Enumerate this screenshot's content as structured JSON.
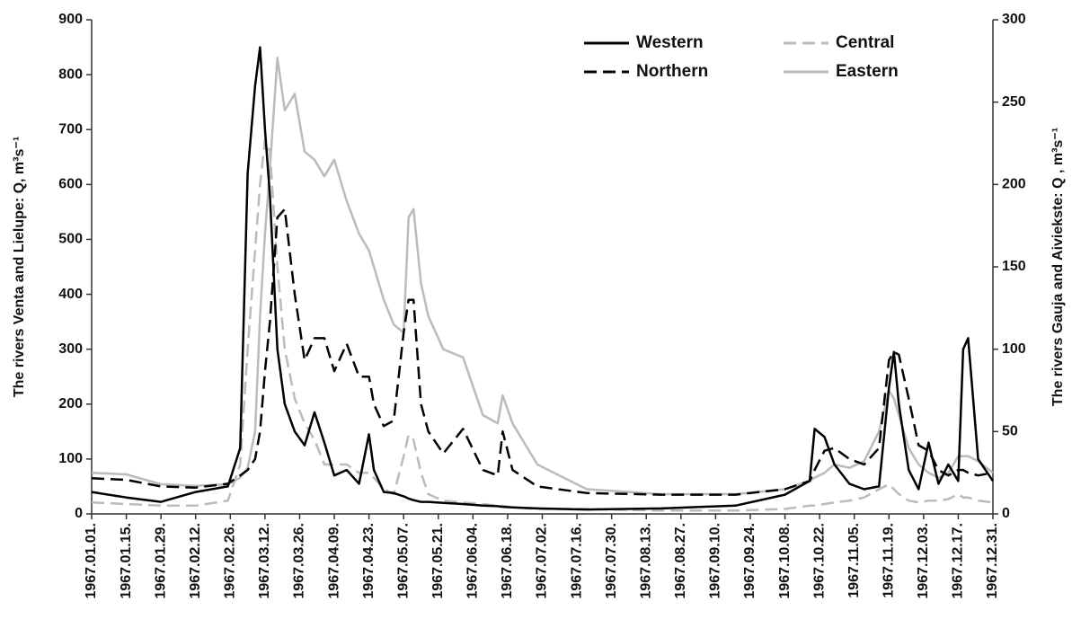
{
  "chart_data": {
    "type": "line",
    "y_label": "The rivers Venta and Lielupe: Q, m³s⁻¹",
    "y2_label": "The rivers Gauja and Aiviekste: Q , m³s⁻¹",
    "x": [
      "1967.01.01.",
      "1967.01.15.",
      "1967.01.29.",
      "1967.02.12.",
      "1967.02.25.",
      "1967.03.02.",
      "1967.03.05.",
      "1967.03.08.",
      "1967.03.10.",
      "1967.03.12.",
      "1967.03.14.",
      "1967.03.17.",
      "1967.03.20.",
      "1967.03.24.",
      "1967.03.28.",
      "1967.04.01.",
      "1967.04.05.",
      "1967.04.09.",
      "1967.04.14.",
      "1967.04.19.",
      "1967.04.23.",
      "1967.04.25.",
      "1967.04.29.",
      "1967.05.03.",
      "1967.05.07.",
      "1967.05.09.",
      "1967.05.11.",
      "1967.05.14.",
      "1967.05.17.",
      "1967.05.23.",
      "1967.05.31.",
      "1967.06.08.",
      "1967.06.14.",
      "1967.06.16.",
      "1967.06.20.",
      "1967.06.30.",
      "1967.07.20.",
      "1967.08.19.",
      "1967.09.18.",
      "1967.10.08.",
      "1967.10.18.",
      "1967.10.20.",
      "1967.10.24.",
      "1967.10.28.",
      "1967.11.03.",
      "1967.11.09.",
      "1967.11.15.",
      "1967.11.19.",
      "1967.11.21.",
      "1967.11.23.",
      "1967.11.27.",
      "1967.12.01.",
      "1967.12.05.",
      "1967.12.09.",
      "1967.12.13.",
      "1967.12.17.",
      "1967.12.19.",
      "1967.12.21.",
      "1967.12.25.",
      "1967.12.31."
    ],
    "series": [
      {
        "name": "Western",
        "color": "#000000",
        "dash": false,
        "axis": "y",
        "values": [
          40,
          30,
          22,
          40,
          50,
          120,
          620,
          780,
          850,
          700,
          580,
          300,
          200,
          150,
          125,
          185,
          130,
          70,
          80,
          55,
          145,
          80,
          40,
          38,
          32,
          28,
          25,
          22,
          22,
          20,
          18,
          15,
          14,
          13,
          12,
          10,
          8,
          10,
          15,
          35,
          60,
          155,
          140,
          90,
          55,
          45,
          50,
          230,
          295,
          200,
          80,
          45,
          130,
          55,
          90,
          60,
          300,
          320,
          100,
          60
        ]
      },
      {
        "name": "Northern",
        "color": "#000000",
        "dash": true,
        "axis": "y",
        "values": [
          65,
          62,
          50,
          48,
          55,
          70,
          80,
          100,
          150,
          260,
          350,
          540,
          555,
          400,
          280,
          320,
          320,
          260,
          310,
          250,
          250,
          200,
          160,
          170,
          330,
          390,
          390,
          200,
          150,
          110,
          155,
          80,
          70,
          150,
          80,
          50,
          38,
          35,
          35,
          45,
          60,
          80,
          115,
          120,
          100,
          90,
          120,
          280,
          295,
          290,
          210,
          125,
          115,
          80,
          70,
          80,
          80,
          75,
          70,
          75
        ]
      },
      {
        "name": "Central",
        "color": "#bbbbbb",
        "dash": true,
        "axis": "y2",
        "values": [
          7,
          6,
          5,
          5,
          8,
          30,
          100,
          160,
          200,
          227,
          220,
          150,
          100,
          70,
          55,
          45,
          30,
          30,
          30,
          25,
          25,
          22,
          15,
          12,
          35,
          48,
          45,
          25,
          12,
          8,
          7,
          6,
          5,
          5,
          4,
          3,
          3,
          2,
          2,
          3,
          5,
          5,
          6,
          7,
          8,
          10,
          15,
          18,
          15,
          12,
          8,
          7,
          8,
          8,
          9,
          12,
          10,
          10,
          8,
          7
        ]
      },
      {
        "name": "Eastern",
        "color": "#bbbbbb",
        "dash": false,
        "axis": "y2",
        "values": [
          25,
          24,
          18,
          17,
          18,
          22,
          28,
          50,
          120,
          170,
          210,
          277,
          245,
          255,
          220,
          215,
          205,
          215,
          190,
          170,
          160,
          150,
          130,
          115,
          110,
          180,
          185,
          140,
          120,
          100,
          95,
          60,
          55,
          72,
          55,
          30,
          15,
          12,
          12,
          15,
          20,
          22,
          25,
          30,
          28,
          32,
          50,
          75,
          70,
          60,
          40,
          30,
          25,
          22,
          25,
          35,
          35,
          35,
          32,
          25
        ]
      }
    ],
    "xlim": [
      "1967.01.01.",
      "1967.12.31."
    ],
    "xticks": [
      "1967.01.01.",
      "1967.01.15.",
      "1967.01.29.",
      "1967.02.12.",
      "1967.02.26.",
      "1967.03.12.",
      "1967.03.26.",
      "1967.04.09.",
      "1967.04.23.",
      "1967.05.07.",
      "1967.05.21.",
      "1967.06.04.",
      "1967.06.18.",
      "1967.07.02.",
      "1967.07.16.",
      "1967.07.30.",
      "1967.08.13.",
      "1967.08.27.",
      "1967.09.10.",
      "1967.09.24.",
      "1967.10.08.",
      "1967.10.22.",
      "1967.11.05.",
      "1967.11.19.",
      "1967.12.03.",
      "1967.12.17.",
      "1967.12.31."
    ],
    "ylim": [
      0,
      900
    ],
    "yticks": [
      0,
      100,
      200,
      300,
      400,
      500,
      600,
      700,
      800,
      900
    ],
    "y2lim": [
      0,
      300
    ],
    "y2ticks": [
      0,
      50,
      100,
      150,
      200,
      250,
      300
    ],
    "legend": "top"
  }
}
